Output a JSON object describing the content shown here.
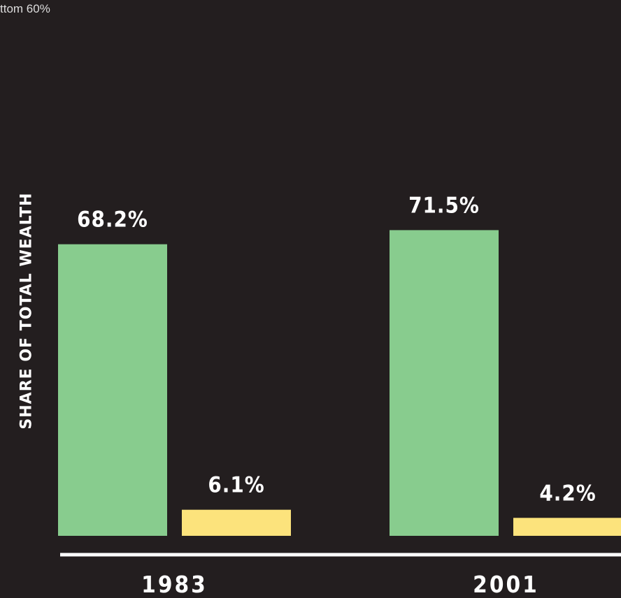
{
  "chart_data": {
    "type": "bar",
    "legend_fragment": "ttom 60%",
    "ylabel": "SHARE OF TOTAL WEALTH",
    "categories": [
      "1983",
      "2001"
    ],
    "series": [
      {
        "values": [
          68.2,
          71.5
        ],
        "labels": [
          "68.2%",
          "71.5%"
        ],
        "color": "#88cc8e"
      },
      {
        "values": [
          6.1,
          4.2
        ],
        "labels": [
          "6.1%",
          "4.2%"
        ],
        "color": "#fce37c"
      }
    ],
    "ylim": [
      0,
      100
    ],
    "grid": false,
    "colors": {
      "background": "#231e1f",
      "axis": "#ffffff",
      "text": "#ffffff"
    }
  }
}
